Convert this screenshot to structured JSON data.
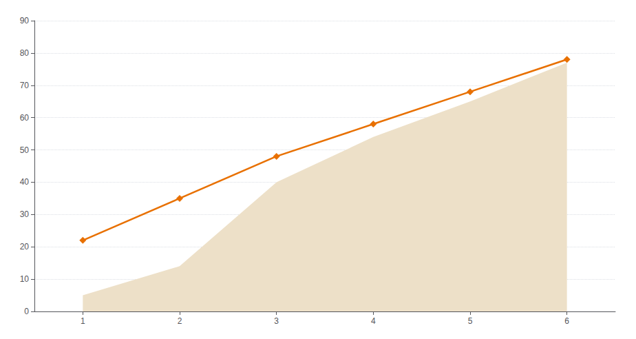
{
  "chart_data": {
    "type": "line",
    "x": [
      1,
      2,
      3,
      4,
      5,
      6
    ],
    "series": [
      {
        "type": "area",
        "color": "#EDE0C8",
        "values": [
          5,
          14,
          40,
          54,
          65,
          77
        ]
      },
      {
        "type": "line",
        "color": "#E87000",
        "marker": "diamond",
        "line_style": "solid",
        "values": [
          22,
          35,
          48,
          58,
          68,
          78
        ]
      }
    ],
    "xlim": [
      0.5,
      6.5
    ],
    "xticks": [
      1,
      2,
      3,
      4,
      5,
      6
    ],
    "ylim": [
      0,
      90
    ],
    "yticks": [
      0,
      10,
      20,
      30,
      40,
      50,
      60,
      70,
      80,
      90
    ],
    "grid": true
  }
}
